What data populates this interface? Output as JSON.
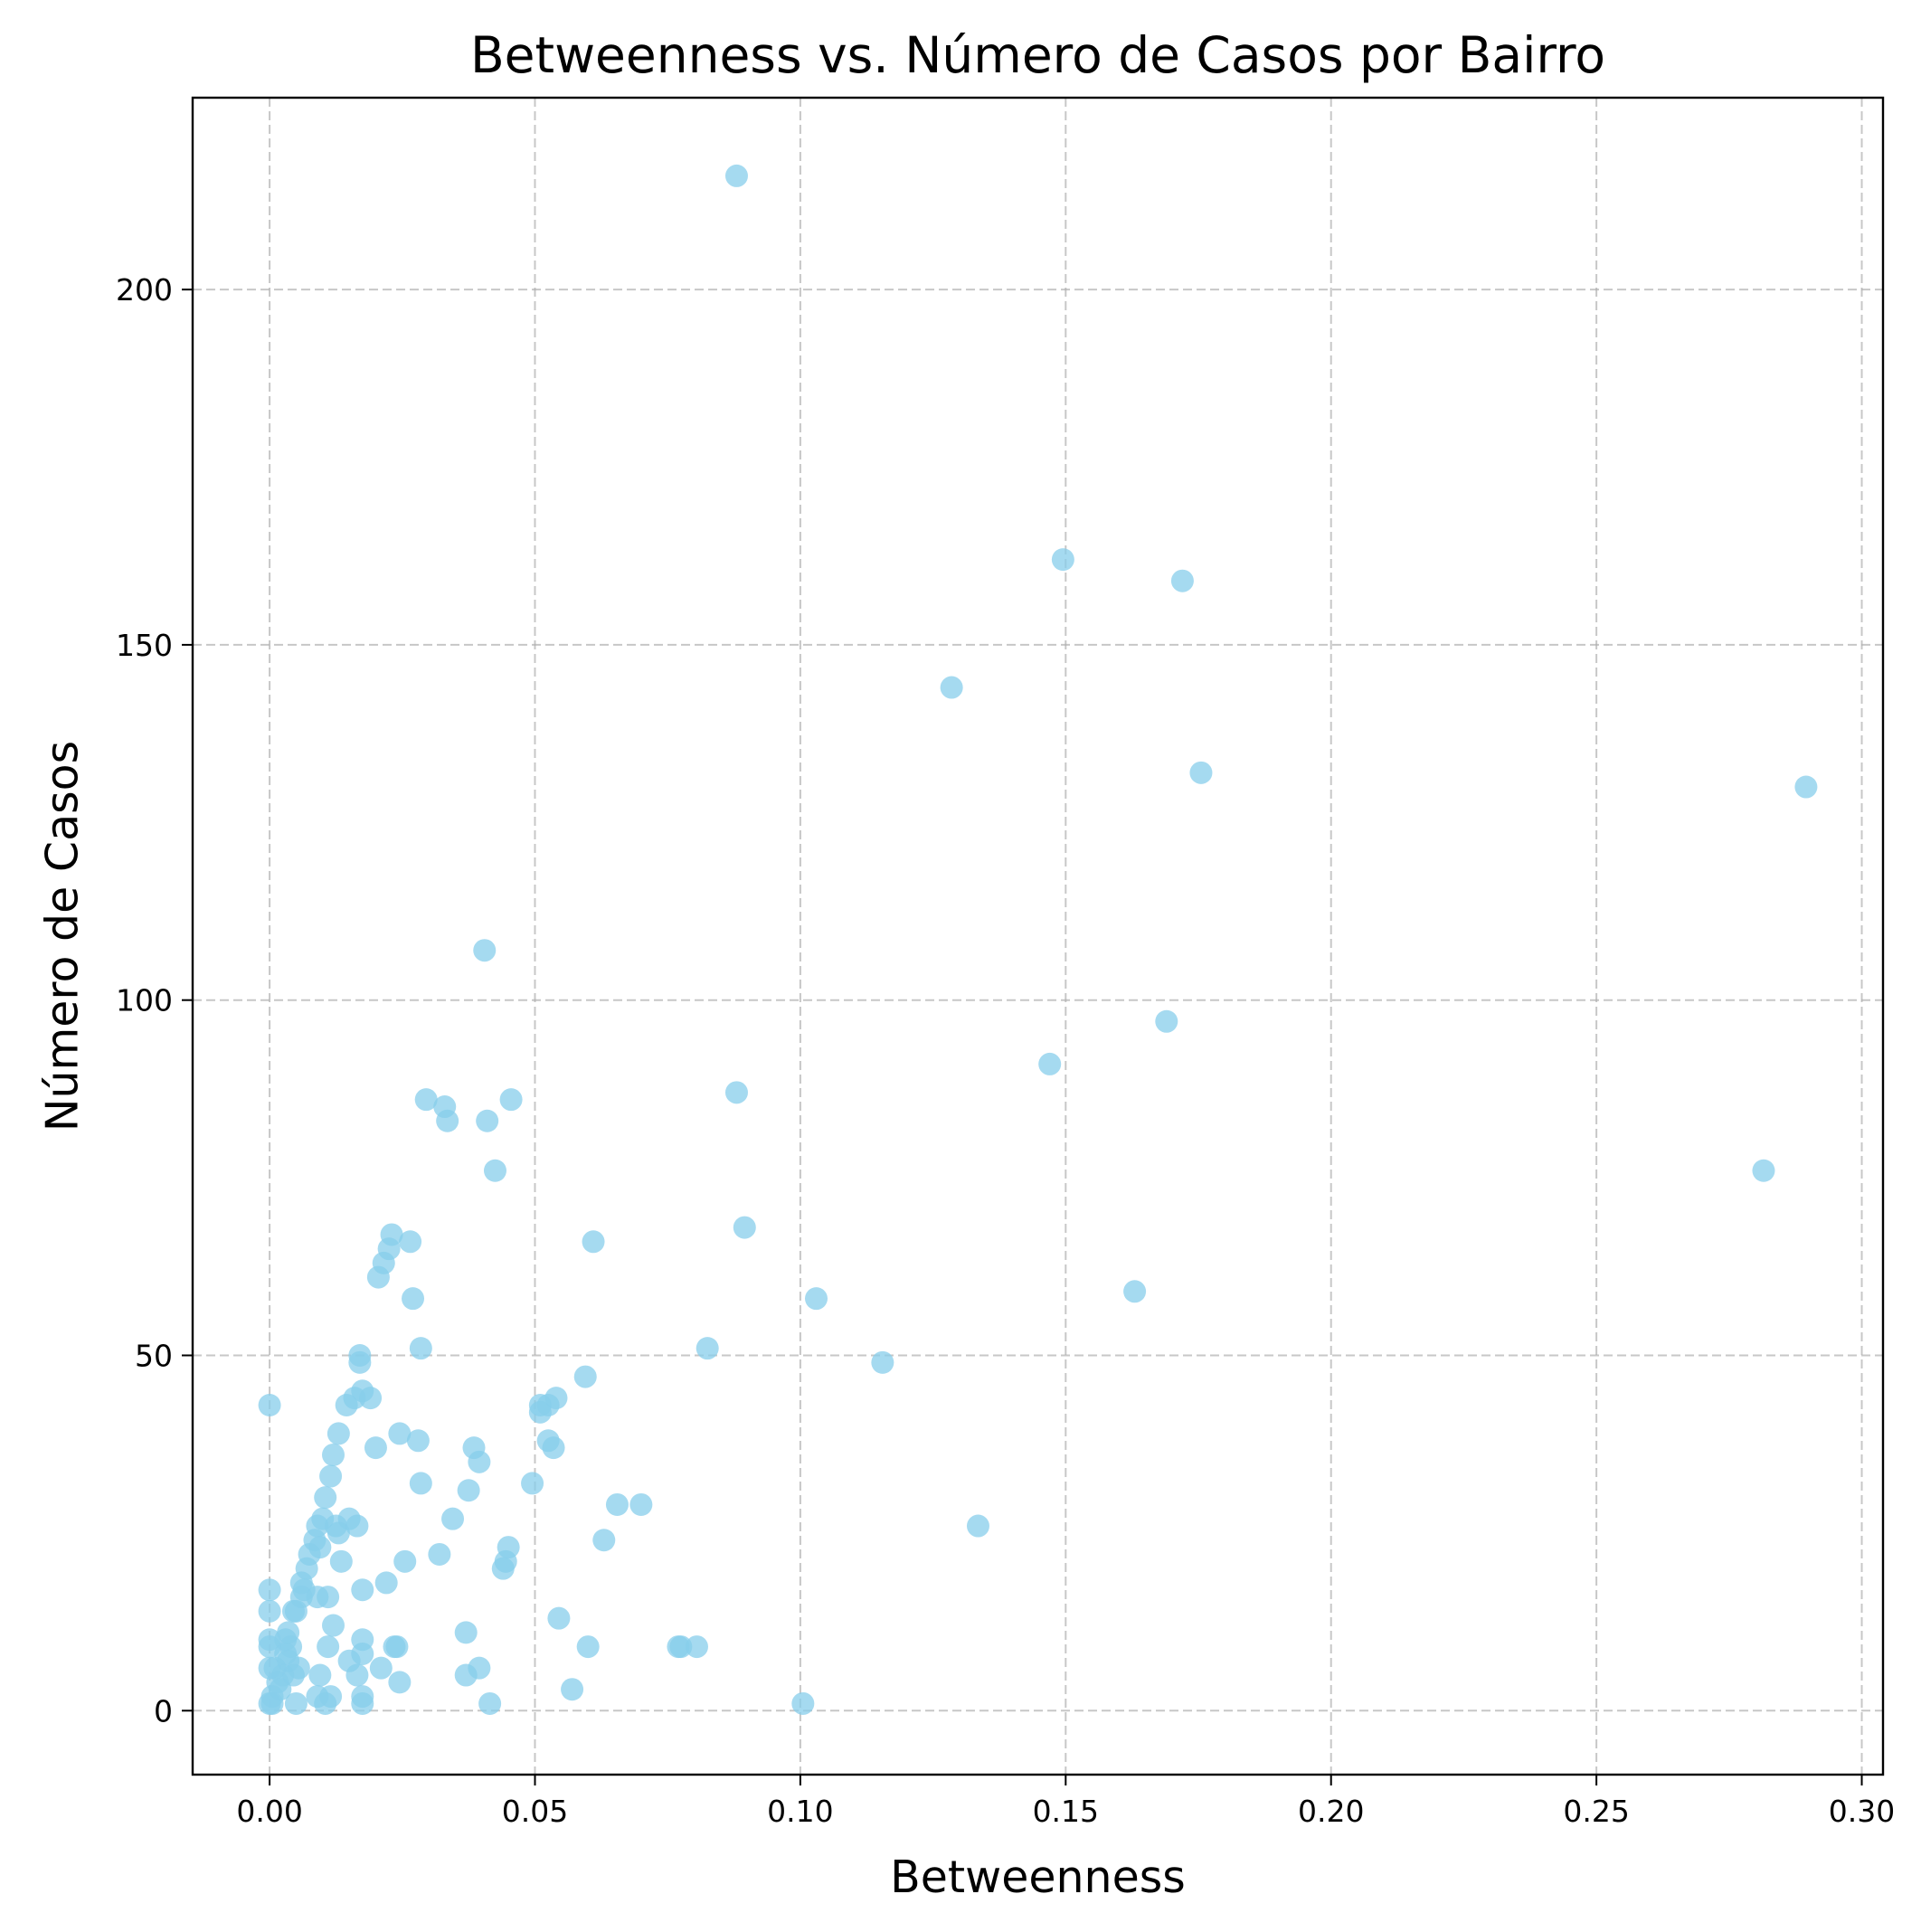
{
  "chart_data": {
    "type": "scatter",
    "title": "Betweenness vs. Número de Casos por Bairro",
    "xlabel": "Betweenness",
    "ylabel": "Número de Casos",
    "xlim": [
      -0.0145,
      0.304
    ],
    "ylim": [
      -9,
      227
    ],
    "xticks": [
      0.0,
      0.05,
      0.1,
      0.15,
      0.2,
      0.25,
      0.3
    ],
    "xtick_labels": [
      "0.00",
      "0.05",
      "0.10",
      "0.15",
      "0.20",
      "0.25",
      "0.30"
    ],
    "yticks": [
      0,
      50,
      100,
      150,
      200
    ],
    "ytick_labels": [
      "0",
      "50",
      "100",
      "150",
      "200"
    ],
    "grid": true,
    "legend": "none",
    "point_color": "#87ceeb",
    "point_opacity": 0.75,
    "points": [
      [
        0.088,
        216
      ],
      [
        0.1495,
        162
      ],
      [
        0.172,
        159
      ],
      [
        0.1285,
        144
      ],
      [
        0.1755,
        132
      ],
      [
        0.2895,
        130
      ],
      [
        0.0405,
        107
      ],
      [
        0.169,
        97
      ],
      [
        0.147,
        91
      ],
      [
        0.088,
        87
      ],
      [
        0.0295,
        86
      ],
      [
        0.0455,
        86
      ],
      [
        0.033,
        85
      ],
      [
        0.0335,
        83
      ],
      [
        0.041,
        83
      ],
      [
        0.0425,
        76
      ],
      [
        0.2815,
        76
      ],
      [
        0.0895,
        68
      ],
      [
        0.023,
        67
      ],
      [
        0.0265,
        66
      ],
      [
        0.061,
        66
      ],
      [
        0.0225,
        65
      ],
      [
        0.0215,
        63
      ],
      [
        0.0205,
        61
      ],
      [
        0.163,
        59
      ],
      [
        0.027,
        58
      ],
      [
        0.103,
        58
      ],
      [
        0.0285,
        51
      ],
      [
        0.0825,
        51
      ],
      [
        0.017,
        50
      ],
      [
        0.017,
        49
      ],
      [
        0.1155,
        49
      ],
      [
        0.0595,
        47
      ],
      [
        0.0175,
        45
      ],
      [
        0.016,
        44
      ],
      [
        0.019,
        44
      ],
      [
        0.054,
        44
      ],
      [
        0.0,
        43
      ],
      [
        0.0145,
        43
      ],
      [
        0.051,
        43
      ],
      [
        0.0525,
        43
      ],
      [
        0.051,
        42
      ],
      [
        0.013,
        39
      ],
      [
        0.0245,
        39
      ],
      [
        0.028,
        38
      ],
      [
        0.0525,
        38
      ],
      [
        0.02,
        37
      ],
      [
        0.0385,
        37
      ],
      [
        0.0535,
        37
      ],
      [
        0.012,
        36
      ],
      [
        0.0395,
        35
      ],
      [
        0.0115,
        33
      ],
      [
        0.0285,
        32
      ],
      [
        0.0495,
        32
      ],
      [
        0.0375,
        31
      ],
      [
        0.0105,
        30
      ],
      [
        0.0655,
        29
      ],
      [
        0.07,
        29
      ],
      [
        0.01,
        27
      ],
      [
        0.015,
        27
      ],
      [
        0.0345,
        27
      ],
      [
        0.009,
        26
      ],
      [
        0.0125,
        26
      ],
      [
        0.0165,
        26
      ],
      [
        0.1335,
        26
      ],
      [
        0.013,
        25
      ],
      [
        0.0085,
        24
      ],
      [
        0.063,
        24
      ],
      [
        0.0095,
        23
      ],
      [
        0.045,
        23
      ],
      [
        0.0075,
        22
      ],
      [
        0.032,
        22
      ],
      [
        0.0135,
        21
      ],
      [
        0.0255,
        21
      ],
      [
        0.0445,
        21
      ],
      [
        0.007,
        20
      ],
      [
        0.044,
        20
      ],
      [
        0.006,
        18
      ],
      [
        0.022,
        18
      ],
      [
        0.0,
        17
      ],
      [
        0.0065,
        17
      ],
      [
        0.0175,
        17
      ],
      [
        0.006,
        16
      ],
      [
        0.009,
        16
      ],
      [
        0.011,
        16
      ],
      [
        0.0,
        14
      ],
      [
        0.005,
        14
      ],
      [
        0.0045,
        14
      ],
      [
        0.0545,
        13
      ],
      [
        0.012,
        12
      ],
      [
        0.0035,
        11
      ],
      [
        0.037,
        11
      ],
      [
        0.0,
        10
      ],
      [
        0.003,
        10
      ],
      [
        0.0175,
        10
      ],
      [
        0.0,
        9
      ],
      [
        0.004,
        9
      ],
      [
        0.011,
        9
      ],
      [
        0.024,
        9
      ],
      [
        0.0235,
        9
      ],
      [
        0.06,
        9
      ],
      [
        0.077,
        9
      ],
      [
        0.0775,
        9
      ],
      [
        0.0805,
        9
      ],
      [
        0.003,
        8
      ],
      [
        0.0175,
        8
      ],
      [
        0.0035,
        7
      ],
      [
        0.015,
        7
      ],
      [
        0.001,
        6
      ],
      [
        0.0,
        6
      ],
      [
        0.0055,
        6
      ],
      [
        0.021,
        6
      ],
      [
        0.0395,
        6
      ],
      [
        0.0025,
        5
      ],
      [
        0.0045,
        5
      ],
      [
        0.0095,
        5
      ],
      [
        0.0165,
        5
      ],
      [
        0.037,
        5
      ],
      [
        0.0015,
        4
      ],
      [
        0.0245,
        4
      ],
      [
        0.002,
        3
      ],
      [
        0.057,
        3
      ],
      [
        0.0005,
        2
      ],
      [
        0.009,
        2
      ],
      [
        0.0115,
        2
      ],
      [
        0.0175,
        2
      ],
      [
        0.0,
        1
      ],
      [
        0.0005,
        1
      ],
      [
        0.005,
        1
      ],
      [
        0.0105,
        1
      ],
      [
        0.0175,
        1
      ],
      [
        0.0415,
        1
      ],
      [
        0.1005,
        1
      ]
    ]
  }
}
